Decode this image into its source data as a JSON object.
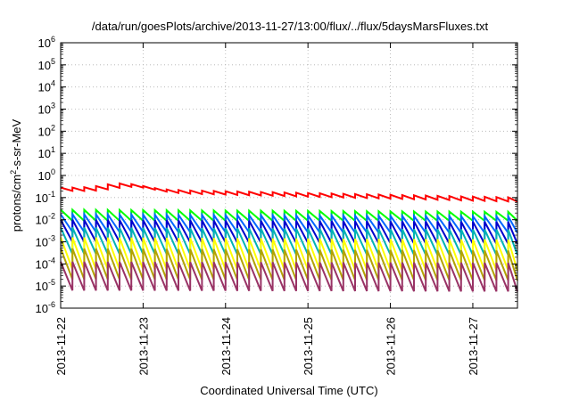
{
  "chart_data": {
    "type": "line",
    "title": "/data/run/goesPlots/archive/2013-11-27/13:00/flux/../flux/5daysMarsFluxes.txt",
    "xlabel": "Coordinated Universal Time (UTC)",
    "ylabel": {
      "prefix": "protons/cm",
      "sup": "2",
      "suffix": "-s-sr-MeV"
    },
    "y_scale": "log",
    "ylim_exp": [
      -6,
      6
    ],
    "y_ticks": [
      {
        "base": "10",
        "exp": "-6"
      },
      {
        "base": "10",
        "exp": "-5"
      },
      {
        "base": "10",
        "exp": "-4"
      },
      {
        "base": "10",
        "exp": "-3"
      },
      {
        "base": "10",
        "exp": "-2"
      },
      {
        "base": "10",
        "exp": "-1"
      },
      {
        "base": "10",
        "exp": "0"
      },
      {
        "base": "10",
        "exp": "1"
      },
      {
        "base": "10",
        "exp": "2"
      },
      {
        "base": "10",
        "exp": "3"
      },
      {
        "base": "10",
        "exp": "4"
      },
      {
        "base": "10",
        "exp": "5"
      },
      {
        "base": "10",
        "exp": "6"
      }
    ],
    "x_ticks": [
      "2013-11-22",
      "2013-11-23",
      "2013-11-24",
      "2013-11-25",
      "2013-11-26",
      "2013-11-27"
    ],
    "xlim": [
      "2013-11-22T00:00",
      "2013-11-27T13:00"
    ],
    "grid": true,
    "legend": "none",
    "cycles_per_day": 7,
    "series": [
      {
        "color": "#ff0000",
        "peak_log": [
          -0.55,
          -1.0
        ],
        "trough_log": [
          -0.7,
          -1.2
        ],
        "bump": {
          "center": "2013-11-22T18:00",
          "peak_log": -0.3
        }
      },
      {
        "color": "#00ff00",
        "peak_log": [
          -1.55,
          -1.65
        ],
        "trough_log": [
          -2.05,
          -2.05
        ]
      },
      {
        "color": "#0066ff",
        "peak_log": [
          -1.75,
          -1.85
        ],
        "trough_log": [
          -2.55,
          -2.6
        ]
      },
      {
        "color": "#0000cc",
        "peak_log": [
          -2.0,
          -2.1
        ],
        "trough_log": [
          -3.0,
          -3.1
        ]
      },
      {
        "color": "#00b3b3",
        "peak_log": [
          -2.35,
          -2.45
        ],
        "trough_log": [
          -3.55,
          -3.6
        ]
      },
      {
        "color": "#ffff00",
        "peak_log": [
          -2.8,
          -2.9
        ],
        "trough_log": [
          -4.25,
          -4.3
        ]
      },
      {
        "color": "#b3a300",
        "peak_log": [
          -3.3,
          -3.4
        ],
        "trough_log": [
          -4.7,
          -4.75
        ]
      },
      {
        "color": "#993366",
        "peak_log": [
          -3.9,
          -3.95
        ],
        "trough_log": [
          -5.2,
          -5.25
        ]
      }
    ]
  }
}
